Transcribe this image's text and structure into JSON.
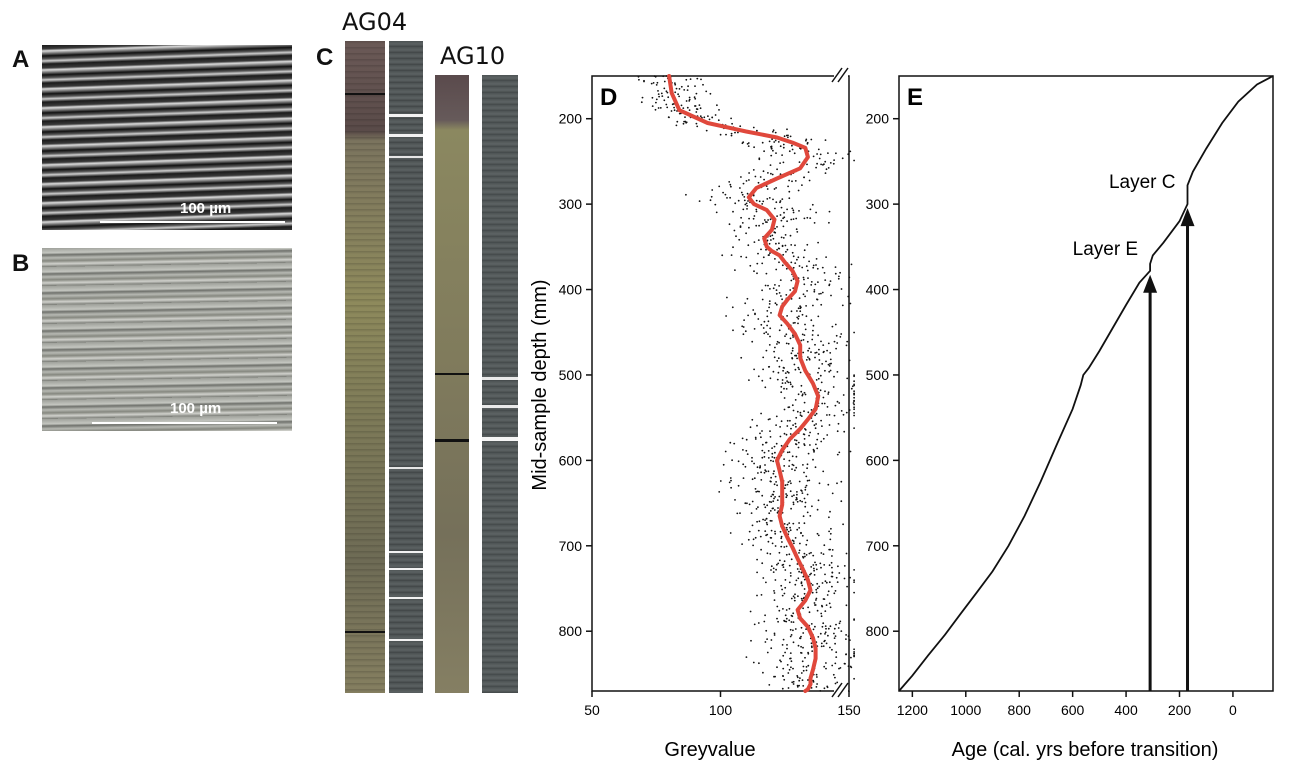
{
  "panels": {
    "a": {
      "letter": "A",
      "scalebar": "100 µm"
    },
    "b": {
      "letter": "B",
      "scalebar": "100 µm"
    },
    "c": {
      "letter": "C",
      "core1": "AG04",
      "core2": "AG10"
    },
    "d": {
      "letter": "D"
    },
    "e": {
      "letter": "E"
    }
  },
  "colors": {
    "trend": "#e0483c",
    "scatter": "#111111",
    "arrow": "#111111"
  },
  "chart_data": [
    {
      "type": "scatter",
      "panel": "D",
      "xlabel": "Greyvalue",
      "ylabel": "Mid-sample depth (mm)",
      "xlim": [
        50,
        150
      ],
      "ylim": [
        870,
        150
      ],
      "y_axis_inverted": true,
      "xticks": [
        50,
        100,
        150
      ],
      "yticks": [
        200,
        300,
        400,
        500,
        600,
        700,
        800
      ],
      "axis_break": "top-right and bottom-right",
      "series": [
        {
          "kind": "smoothed-curve",
          "x": [
            80,
            81,
            84,
            95,
            110,
            122,
            128,
            133,
            134,
            131,
            122,
            114,
            111,
            113,
            118,
            121,
            120,
            117,
            118,
            120,
            123,
            125,
            128,
            130,
            129,
            126,
            124,
            123,
            126,
            129,
            131,
            131,
            133,
            136,
            138,
            137,
            134,
            131,
            127,
            124,
            122,
            123,
            124,
            124,
            124,
            123,
            124,
            126,
            128,
            130,
            132,
            134,
            135,
            133,
            130,
            131,
            134,
            136,
            137,
            137,
            136,
            135,
            135,
            134,
            133
          ],
          "y": [
            150,
            170,
            190,
            205,
            215,
            222,
            228,
            234,
            245,
            258,
            270,
            281,
            292,
            300,
            307,
            318,
            330,
            340,
            350,
            355,
            360,
            368,
            378,
            390,
            402,
            412,
            420,
            430,
            440,
            452,
            465,
            480,
            495,
            510,
            525,
            540,
            552,
            563,
            575,
            588,
            600,
            612,
            625,
            640,
            652,
            665,
            677,
            690,
            702,
            715,
            727,
            740,
            752,
            764,
            775,
            785,
            795,
            808,
            820,
            832,
            845,
            855,
            862,
            868,
            870
          ]
        }
      ]
    },
    {
      "type": "line",
      "panel": "E",
      "xlabel": "Age (cal. yrs before transition)",
      "ylabel": "",
      "xlim": [
        1250,
        -150
      ],
      "ylim": [
        870,
        150
      ],
      "y_axis_inverted": true,
      "x_axis_inverted": true,
      "xticks": [
        1200,
        1000,
        800,
        600,
        400,
        200,
        0
      ],
      "yticks": [
        200,
        300,
        400,
        500,
        600,
        700,
        800
      ],
      "series": [
        {
          "kind": "age-depth",
          "x": [
            -150,
            -90,
            -20,
            40,
            100,
            150,
            170,
            170,
            200,
            260,
            300,
            310,
            310,
            350,
            400,
            450,
            500,
            540,
            560,
            570,
            600,
            660,
            720,
            780,
            840,
            900,
            960,
            1020,
            1080,
            1140,
            1200,
            1250
          ],
          "y": [
            150,
            160,
            180,
            205,
            235,
            262,
            278,
            300,
            320,
            345,
            360,
            370,
            378,
            392,
            418,
            445,
            472,
            492,
            500,
            512,
            540,
            582,
            625,
            665,
            700,
            730,
            755,
            780,
            805,
            828,
            852,
            870
          ]
        }
      ],
      "annotations": [
        {
          "text": "Layer C",
          "x": 170,
          "y": 300
        },
        {
          "text": "Layer E",
          "x": 310,
          "y": 378
        }
      ]
    }
  ]
}
